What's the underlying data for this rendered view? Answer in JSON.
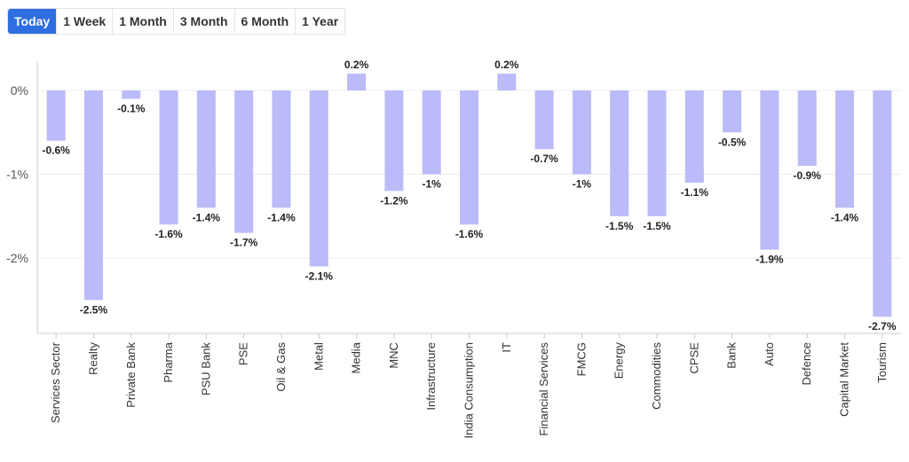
{
  "tabs": [
    {
      "label": "Today",
      "active": true
    },
    {
      "label": "1 Week",
      "active": false
    },
    {
      "label": "1 Month",
      "active": false
    },
    {
      "label": "3 Month",
      "active": false
    },
    {
      "label": "6 Month",
      "active": false
    },
    {
      "label": "1 Year",
      "active": false
    }
  ],
  "colors": {
    "bar": "#bbbbf9",
    "accent": "#2f6ee0"
  },
  "chart_data": {
    "type": "bar",
    "categories": [
      "Services Sector",
      "Realty",
      "Private Bank",
      "Pharma",
      "PSU Bank",
      "PSE",
      "Oil & Gas",
      "Metal",
      "Media",
      "MNC",
      "Infrastructure",
      "India Consumption",
      "IT",
      "Financial Services",
      "FMCG",
      "Energy",
      "Commodities",
      "CPSE",
      "Bank",
      "Auto",
      "Defence",
      "Capital Market",
      "Tourism"
    ],
    "values": [
      -0.6,
      -2.5,
      -0.1,
      -1.6,
      -1.4,
      -1.7,
      -1.4,
      -2.1,
      0.2,
      -1.2,
      -1,
      -1.6,
      0.2,
      -0.7,
      -1,
      -1.5,
      -1.5,
      -1.1,
      -0.5,
      -1.9,
      -0.9,
      -1.4,
      -2.7
    ],
    "data_labels": [
      "-0.6%",
      "-2.5%",
      "-0.1%",
      "-1.6%",
      "-1.4%",
      "-1.7%",
      "-1.4%",
      "-2.1%",
      "0.2%",
      "-1.2%",
      "-1%",
      "-1.6%",
      "0.2%",
      "-0.7%",
      "-1%",
      "-1.5%",
      "-1.5%",
      "-1.1%",
      "-0.5%",
      "-1.9%",
      "-0.9%",
      "-1.4%",
      "-2.7%"
    ],
    "yticks": [
      0,
      -1,
      -2
    ],
    "ytick_labels": [
      "0%",
      "-1%",
      "-2%"
    ],
    "ylim": [
      -2.9,
      0.35
    ],
    "grid": true,
    "title": "",
    "xlabel": "",
    "ylabel": ""
  }
}
